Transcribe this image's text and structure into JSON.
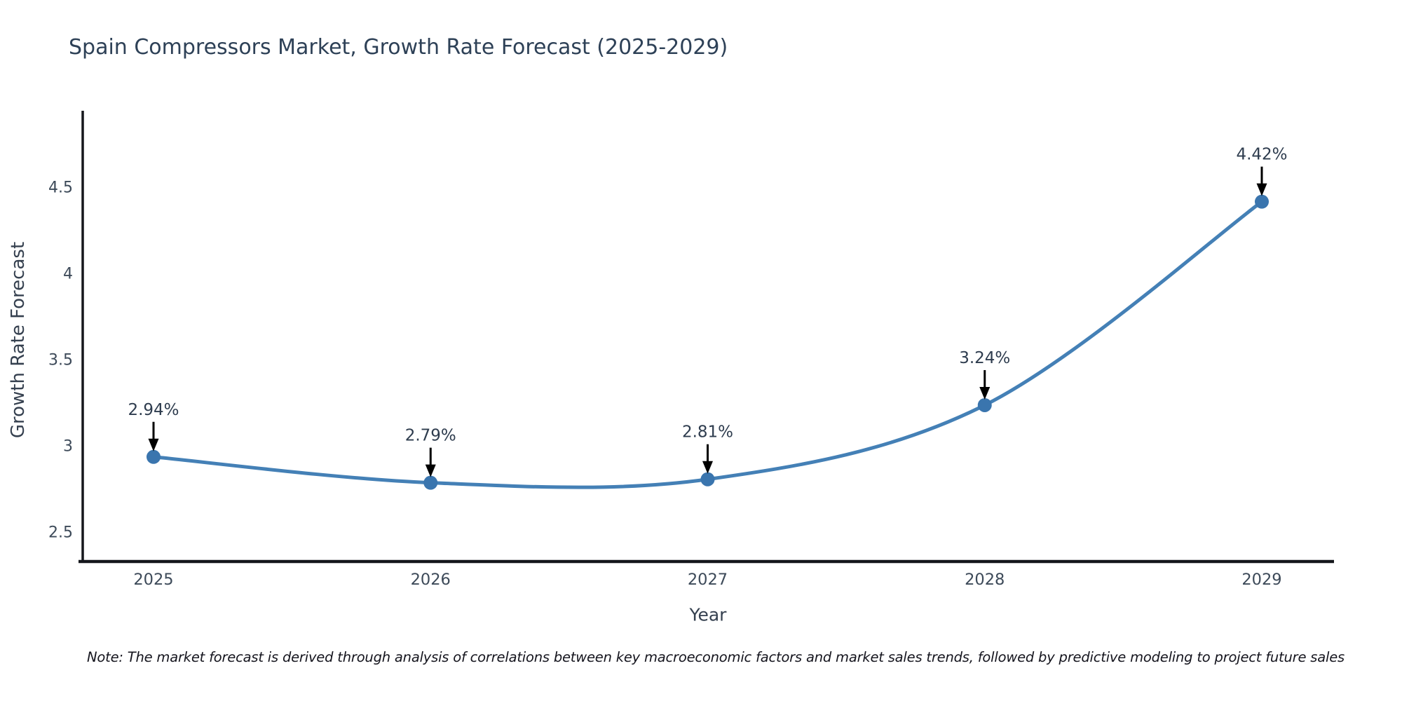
{
  "title": "Spain Compressors Market, Growth Rate Forecast (2025-2029)",
  "note": "Note: The market forecast is derived through analysis of correlations between key macroeconomic factors and market sales trends, followed by predictive modeling to project future sales",
  "chart_data": {
    "type": "line",
    "title": "Spain Compressors Market, Growth Rate Forecast (2025-2029)",
    "xlabel": "Year",
    "ylabel": "Growth Rate Forecast",
    "x": [
      2025,
      2026,
      2027,
      2028,
      2029
    ],
    "values": [
      2.94,
      2.79,
      2.81,
      3.24,
      4.42
    ],
    "point_labels": [
      "2.94%",
      "2.79%",
      "2.81%",
      "3.24%",
      "4.42%"
    ],
    "yticks": [
      "2.5",
      "3",
      "3.5",
      "4",
      "4.5"
    ],
    "ytick_values": [
      2.5,
      3,
      3.5,
      4,
      4.5
    ],
    "ylim": [
      2.34,
      4.94
    ],
    "xlim": [
      2024.73,
      2029.26
    ],
    "grid": false,
    "legend": "none",
    "line_shape": "spline",
    "colors": {
      "line": "#4480b6",
      "marker": "#3a75ae",
      "axis": "#15171c",
      "tick_label": "#3d4a59",
      "annotation_text": "#2e3c4e",
      "annotation_arrow": "#000000",
      "title": "#2e4157",
      "background": "#ffffff"
    }
  }
}
